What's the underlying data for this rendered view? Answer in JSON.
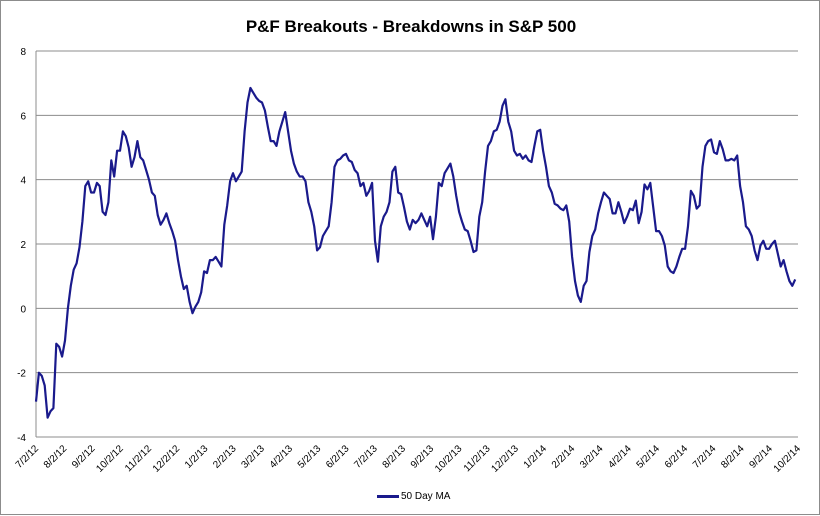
{
  "chart_data": {
    "type": "line",
    "title": "P&F Breakouts - Breakdowns in S&P 500",
    "xlabel": "",
    "ylabel": "",
    "ylim": [
      -4,
      8
    ],
    "yticks": [
      "8",
      "6",
      "4",
      "2",
      "0",
      "-2",
      "-4"
    ],
    "ytick_values": [
      8,
      6,
      4,
      2,
      0,
      -2,
      -4
    ],
    "xticks": [
      "7/2/12",
      "8/2/12",
      "9/2/12",
      "10/2/12",
      "11/2/12",
      "12/2/12",
      "1/2/13",
      "2/2/13",
      "3/2/13",
      "4/2/13",
      "5/2/13",
      "6/2/13",
      "7/2/13",
      "8/2/13",
      "9/2/13",
      "10/2/13",
      "11/2/13",
      "12/2/13",
      "1/2/14",
      "2/2/14",
      "3/2/14",
      "4/2/14",
      "5/2/14",
      "6/2/14",
      "7/2/14",
      "8/2/14",
      "9/2/14",
      "10/2/14"
    ],
    "grid": true,
    "legend_position": "bottom",
    "series": [
      {
        "name": "50 Day MA",
        "color": "#1a1a8c",
        "x_start_month": 0,
        "x_end_month": 26.9,
        "values": [
          -2.9,
          -2.0,
          -2.1,
          -2.4,
          -3.4,
          -3.2,
          -3.1,
          -1.1,
          -1.2,
          -1.5,
          -1.0,
          0,
          0.7,
          1.2,
          1.4,
          1.9,
          2.7,
          3.8,
          3.95,
          3.6,
          3.6,
          3.9,
          3.8,
          3.0,
          2.9,
          3.3,
          4.6,
          4.1,
          4.9,
          4.9,
          5.5,
          5.35,
          5.0,
          4.4,
          4.7,
          5.2,
          4.7,
          4.6,
          4.3,
          4.0,
          3.6,
          3.5,
          2.9,
          2.6,
          2.75,
          2.95,
          2.65,
          2.4,
          2.1,
          1.5,
          1.0,
          0.6,
          0.7,
          0.2,
          -0.15,
          0.05,
          0.2,
          0.5,
          1.15,
          1.1,
          1.5,
          1.5,
          1.6,
          1.45,
          1.3,
          2.6,
          3.2,
          3.95,
          4.2,
          3.95,
          4.1,
          4.25,
          5.5,
          6.4,
          6.85,
          6.7,
          6.55,
          6.45,
          6.4,
          6.15,
          5.65,
          5.2,
          5.2,
          5.05,
          5.5,
          5.8,
          6.1,
          5.5,
          4.9,
          4.5,
          4.25,
          4.1,
          4.1,
          3.95,
          3.3,
          3.0,
          2.55,
          1.8,
          1.9,
          2.25,
          2.4,
          2.55,
          3.3,
          4.4,
          4.6,
          4.65,
          4.75,
          4.8,
          4.6,
          4.55,
          4.3,
          4.2,
          3.8,
          3.9,
          3.5,
          3.65,
          3.9,
          2.1,
          1.45,
          2.55,
          2.85,
          3.0,
          3.3,
          4.25,
          4.4,
          3.6,
          3.55,
          3.15,
          2.7,
          2.45,
          2.75,
          2.65,
          2.75,
          2.95,
          2.75,
          2.55,
          2.85,
          2.15,
          2.85,
          3.9,
          3.8,
          4.2,
          4.35,
          4.5,
          4.1,
          3.5,
          3.0,
          2.7,
          2.45,
          2.4,
          2.1,
          1.75,
          1.8,
          2.85,
          3.3,
          4.25,
          5.05,
          5.2,
          5.5,
          5.55,
          5.8,
          6.3,
          6.5,
          5.8,
          5.5,
          4.9,
          4.75,
          4.8,
          4.65,
          4.75,
          4.6,
          4.55,
          5.05,
          5.5,
          5.55,
          4.9,
          4.4,
          3.8,
          3.6,
          3.25,
          3.2,
          3.1,
          3.05,
          3.2,
          2.7,
          1.6,
          0.85,
          0.4,
          0.2,
          0.7,
          0.85,
          1.75,
          2.25,
          2.45,
          2.95,
          3.3,
          3.6,
          3.5,
          3.4,
          2.95,
          2.95,
          3.3,
          3.0,
          2.65,
          2.85,
          3.1,
          3.05,
          3.35,
          2.65,
          3.0,
          3.85,
          3.7,
          3.9,
          3.15,
          2.4,
          2.4,
          2.25,
          1.95,
          1.3,
          1.15,
          1.1,
          1.3,
          1.6,
          1.85,
          1.85,
          2.55,
          3.65,
          3.5,
          3.1,
          3.2,
          4.4,
          5.05,
          5.2,
          5.25,
          4.85,
          4.8,
          5.2,
          4.95,
          4.6,
          4.6,
          4.65,
          4.6,
          4.75,
          3.8,
          3.3,
          2.55,
          2.45,
          2.25,
          1.8,
          1.5,
          1.95,
          2.1,
          1.85,
          1.85,
          2.0,
          2.1,
          1.7,
          1.3,
          1.5,
          1.15,
          0.85,
          0.7,
          0.9
        ]
      }
    ]
  }
}
